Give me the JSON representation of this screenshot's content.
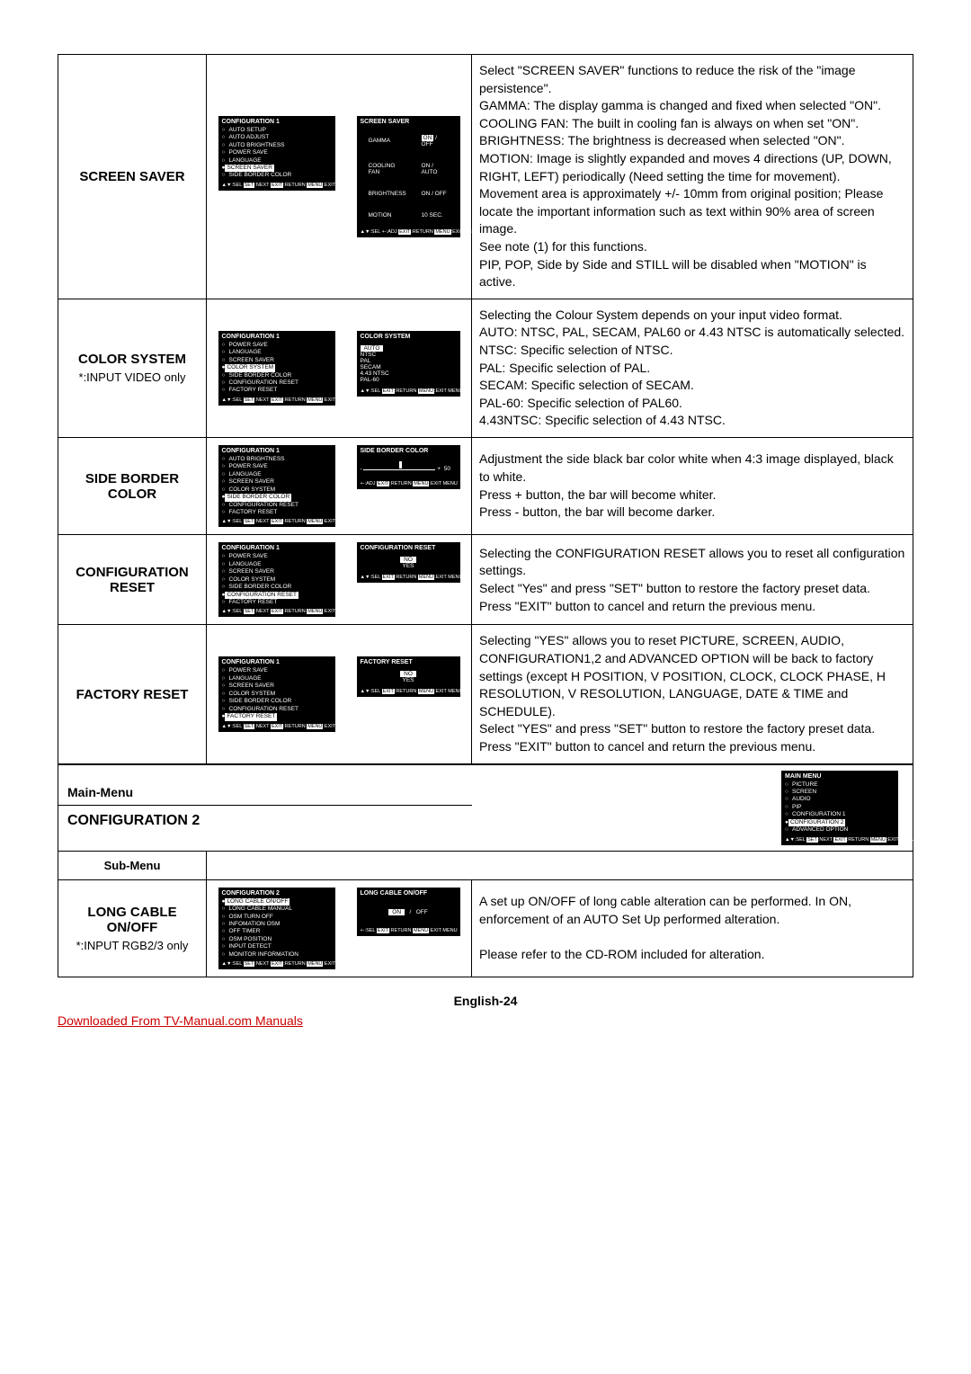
{
  "rows": [
    {
      "label": "SCREEN SAVER",
      "sublabel": "",
      "menu1": {
        "title": "CONFIGURATION 1",
        "items": [
          "AUTO SETUP",
          "AUTO ADJUST",
          "AUTO BRIGHTNESS",
          "POWER SAVE",
          "LANGUAGE"
        ],
        "selected": "SCREEN SAVER",
        "items2": [
          "SIDE BORDER COLOR"
        ],
        "footer": "▲▼:SEL SET:NEXT EXIT:RETURN MENU:EXIT MENU"
      },
      "menu2": {
        "title": "SCREEN SAVER",
        "rows": [
          [
            "GAMMA",
            "ON  /  OFF"
          ],
          [
            "COOLING FAN",
            "ON  /  AUTO"
          ],
          [
            "BRIGHTNESS",
            "ON  /  OFF"
          ],
          [
            "MOTION",
            "10 SEC."
          ]
        ],
        "footer": "▲▼:SEL +-:ADJ   EXIT:RETURN MENU:EXIT MENU"
      },
      "desc": "Select \"SCREEN SAVER\" functions to reduce the risk of the \"image persistence\".\nGAMMA: The display gamma is changed and fixed when selected \"ON\".\nCOOLING FAN: The built in cooling fan is always on when set \"ON\".\nBRIGHTNESS: The brightness is decreased when selected \"ON\".\nMOTION: Image is slightly expanded and moves 4 directions (UP, DOWN, RIGHT, LEFT) periodically (Need setting the time for movement).\nMovement area is approximately +/- 10mm from original position; Please locate the important information such as text within 90% area of screen image.\nSee note (1) for this functions.\nPIP, POP, Side by Side and STILL will be disabled when \"MOTION\" is active."
    },
    {
      "label": "COLOR SYSTEM",
      "sublabel": "*:INPUT VIDEO only",
      "menu1": {
        "title": "CONFIGURATION 1",
        "items": [
          "POWER SAVE",
          "LANGUAGE",
          "SCREEN SAVER"
        ],
        "selected": "COLOR SYSTEM",
        "items2": [
          "SIDE BORDER COLOR",
          "CONFIGURATION RESET",
          "FACTORY RESET"
        ],
        "footer": "▲▼:SEL SET:NEXT EXIT:RETURN MENU:EXIT MENU"
      },
      "menu2": {
        "title": "COLOR SYSTEM",
        "list": [
          "AUTO",
          "NTSC",
          "PAL",
          "SECAM",
          "4.43 NTSC",
          "PAL-60"
        ],
        "listSelected": 0,
        "footer": "▲▼:SEL          EXIT:RETURN MENU:EXIT MENU"
      },
      "desc": "Selecting the Colour System depends on your input video format.\nAUTO: NTSC, PAL, SECAM, PAL60 or 4.43 NTSC is automatically selected.\nNTSC: Specific selection of NTSC.\nPAL: Specific selection of PAL.\nSECAM: Specific selection of SECAM.\nPAL-60: Specific selection of PAL60.\n4.43NTSC: Specific selection of 4.43 NTSC."
    },
    {
      "label": "SIDE BORDER COLOR",
      "sublabel": "",
      "menu1": {
        "title": "CONFIGURATION 1",
        "items": [
          "AUTO BRIGHTNESS",
          "POWER SAVE",
          "LANGUAGE",
          "SCREEN SAVER",
          "COLOR SYSTEM"
        ],
        "selected": "SIDE BORDER COLOR",
        "items2": [
          "CONFIGURATION RESET",
          "FACTORY RESET"
        ],
        "footer": "▲▼:SEL SET:NEXT EXIT:RETURN MENU:EXIT MENU"
      },
      "menu2": {
        "title": "SIDE BORDER COLOR",
        "slider": "50",
        "footer": "+-:ADJ          EXIT:RETURN MENU:EXIT MENU"
      },
      "desc": "Adjustment the side black bar color white when 4:3 image displayed, black to white.\nPress + button, the bar will become whiter.\nPress - button, the bar will become darker."
    },
    {
      "label": "CONFIGURATION RESET",
      "sublabel": "",
      "menu1": {
        "title": "CONFIGURATION 1",
        "items": [
          "POWER SAVE",
          "LANGUAGE",
          "SCREEN SAVER",
          "COLOR SYSTEM",
          "SIDE BORDER COLOR"
        ],
        "selected": "CONFIGURATION RESET",
        "items2": [
          "FACTORY RESET"
        ],
        "footer": "▲▼:SEL SET:NEXT EXIT:RETURN MENU:EXIT MENU"
      },
      "menu2": {
        "title": "CONFIGURATION RESET",
        "list": [
          "NO",
          "YES"
        ],
        "listSelected": 0,
        "centered": true,
        "footer": "▲▼:SEL          EXIT:RETURN MENU:EXIT MENU"
      },
      "desc": "Selecting the CONFIGURATION RESET allows you to reset all configuration settings.\nSelect \"Yes\" and press \"SET\" button to restore the factory preset data.\nPress \"EXIT\" button to cancel and return the previous menu."
    },
    {
      "label": "FACTORY RESET",
      "sublabel": "",
      "menu1": {
        "title": "CONFIGURATION 1",
        "items": [
          "POWER SAVE",
          "LANGUAGE",
          "SCREEN SAVER",
          "COLOR SYSTEM",
          "SIDE BORDER COLOR",
          "CONFIGURATION RESET"
        ],
        "selected": "FACTORY RESET",
        "items2": [],
        "footer": "▲▼:SEL SET:NEXT EXIT:RETURN MENU:EXIT MENU"
      },
      "menu2": {
        "title": "FACTORY RESET",
        "list": [
          "NO",
          "YES"
        ],
        "listSelected": 0,
        "centered": true,
        "footer": "▲▼:SEL          EXIT:RETURN MENU:EXIT MENU"
      },
      "desc": "Selecting \"YES\" allows you to reset PICTURE, SCREEN, AUDIO, CONFIGURATION1,2 and ADVANCED OPTION will be back to factory settings (except H POSITION, V POSITION, CLOCK, CLOCK PHASE, H RESOLUTION, V RESOLUTION, LANGUAGE, DATE & TIME and SCHEDULE).\nSelect \"YES\" and press \"SET\" button to restore the factory preset data.\nPress \"EXIT\" button to cancel and return the previous menu."
    }
  ],
  "section2": {
    "mainMenuLabel": "Main-Menu",
    "config2Label": "CONFIGURATION 2",
    "subMenuLabel": "Sub-Menu",
    "mainMenuBox": {
      "title": "MAIN MENU",
      "items": [
        "PICTURE",
        "SCREEN",
        "AUDIO",
        "PIP",
        "CONFIGURATION 1"
      ],
      "selected": "CONFIGURATION 2",
      "items2": [
        "ADVANCED OPTION"
      ],
      "footer": "▲▼:SEL SET:NEXT EXIT:RETURN MENU:EXIT MENU"
    },
    "row": {
      "label": "LONG CABLE ON/OFF",
      "sublabel": "*:INPUT RGB2/3 only",
      "menu1": {
        "title": "CONFIGURATION 2",
        "items": [],
        "selected": "LONG CABLE ON/OFF",
        "items2": [
          "LONG CABLE MANUAL",
          "OSM TURN OFF",
          "INFOMATION OSM",
          "OFF TIMER",
          "OSM POSITION",
          "INPUT DETECT",
          "MONITOR INFORMATION"
        ],
        "footer": "▲▼:SEL SET:NEXT EXIT:RETURN MENU:EXIT MENU"
      },
      "menu2": {
        "title": "LONG CABLE ON/OFF",
        "onoff": [
          "ON",
          "/",
          "OFF"
        ],
        "footer": "+-:SEL          EXIT:RETURN MENU:EXIT MENU"
      },
      "desc": "A set up ON/OFF of long cable alteration can be performed. In ON, enforcement of an AUTO Set Up performed alteration.\n\nPlease refer to the CD-ROM included for alteration."
    }
  },
  "pageFooter": "English-24",
  "downloadLink": "Downloaded From TV-Manual.com Manuals"
}
